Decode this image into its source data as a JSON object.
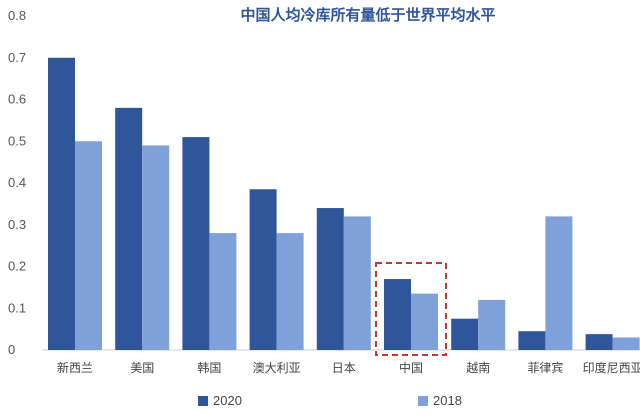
{
  "chart_data": {
    "type": "bar",
    "title": "中国人均冷库所有量低于世界平均水平",
    "categories": [
      "新西兰",
      "美国",
      "韩国",
      "澳大利亚",
      "日本",
      "中国",
      "越南",
      "菲律宾",
      "印度尼西亚"
    ],
    "series": [
      {
        "name": "2020",
        "color": "#2F559B",
        "values": [
          0.7,
          0.58,
          0.51,
          0.385,
          0.34,
          0.17,
          0.075,
          0.045,
          0.038
        ]
      },
      {
        "name": "2018",
        "color": "#7FA0D8",
        "values": [
          0.5,
          0.49,
          0.28,
          0.28,
          0.32,
          0.135,
          0.12,
          0.32,
          0.03
        ]
      }
    ],
    "yticks": [
      "0",
      "0.1",
      "0.2",
      "0.3",
      "0.4",
      "0.5",
      "0.6",
      "0.7",
      "0.8"
    ],
    "ylim": [
      0,
      0.8
    ],
    "xlabel": "",
    "ylabel": "",
    "legend_position": "bottom",
    "highlight_category": "中国",
    "title_color": "#2F559B"
  }
}
